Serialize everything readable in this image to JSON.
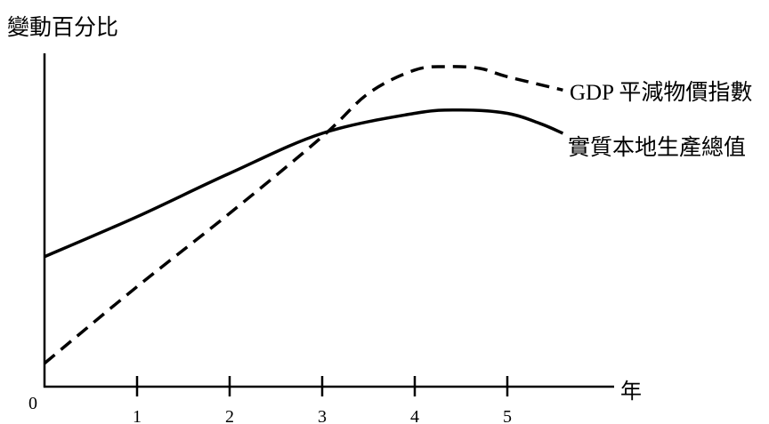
{
  "chart_data": {
    "type": "line",
    "title": "",
    "ylabel": "變動百分比",
    "xlabel": "年",
    "origin_label": "0",
    "x_ticks": [
      "1",
      "2",
      "3",
      "4",
      "5"
    ],
    "xlim": [
      0,
      6.15
    ],
    "ylim": [
      0,
      10
    ],
    "grid": false,
    "series": [
      {
        "name": "GDP 平減物價指數",
        "line_style": "dashed",
        "x": [
          0,
          1,
          2,
          3,
          3.5,
          4,
          4.35,
          4.7,
          5,
          5.6
        ],
        "y": [
          0.7,
          3.0,
          5.2,
          7.5,
          8.8,
          9.5,
          9.6,
          9.55,
          9.3,
          8.9
        ]
      },
      {
        "name": "實質本地生產總值",
        "line_style": "solid",
        "x": [
          0,
          1,
          2,
          3,
          4,
          4.5,
          5,
          5.35,
          5.6
        ],
        "y": [
          3.9,
          5.1,
          6.4,
          7.6,
          8.2,
          8.3,
          8.2,
          7.9,
          7.6
        ]
      }
    ]
  }
}
